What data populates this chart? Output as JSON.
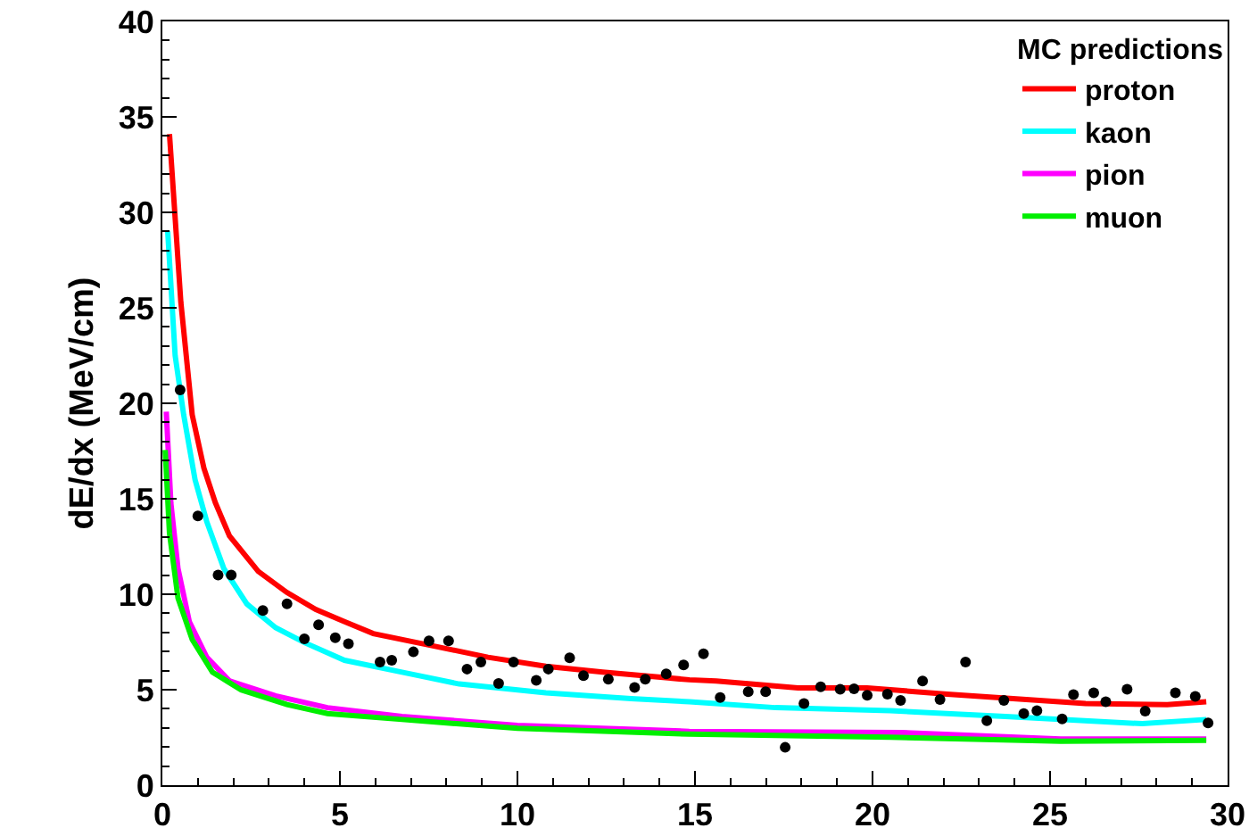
{
  "chart_data": {
    "type": "line",
    "ylabel": "dE/dx (MeV/cm)",
    "legend_title": "MC predictions",
    "legend": "top right",
    "grid": false,
    "xlim": [
      0,
      30
    ],
    "xticks": [
      0,
      5,
      10,
      15,
      20,
      25,
      30
    ],
    "ylim": [
      0,
      40
    ],
    "yticks": [
      0,
      5,
      10,
      15,
      20,
      25,
      30,
      35,
      40
    ],
    "series": [
      {
        "name": "proton",
        "color": "#ff0000",
        "x": [
          0.2,
          0.52,
          0.84,
          1.17,
          1.49,
          1.89,
          2.7,
          3.5,
          4.32,
          5.13,
          5.94,
          7.56,
          9.17,
          10.8,
          12.4,
          14.84,
          15.6,
          17.9,
          19.85,
          22.1,
          26.0,
          28.3,
          29.4
        ],
        "values": [
          34.1,
          25.3,
          19.4,
          16.6,
          14.8,
          13.05,
          11.2,
          10.1,
          9.2,
          8.56,
          7.94,
          7.32,
          6.7,
          6.23,
          5.92,
          5.52,
          5.46,
          5.09,
          5.09,
          4.77,
          4.28,
          4.22,
          4.37
        ]
      },
      {
        "name": "kaon",
        "color": "#00ffff",
        "x": [
          0.15,
          0.36,
          0.6,
          0.92,
          1.25,
          1.73,
          2.38,
          3.19,
          4.0,
          5.13,
          6.75,
          8.36,
          10.8,
          13.2,
          14.84,
          17.27,
          20.5,
          23.74,
          27.6,
          29.4
        ],
        "values": [
          29.0,
          22.5,
          19.4,
          16.0,
          13.8,
          11.35,
          9.49,
          8.25,
          7.47,
          6.54,
          5.92,
          5.3,
          4.84,
          4.53,
          4.37,
          4.06,
          3.9,
          3.6,
          3.22,
          3.44
        ]
      },
      {
        "name": "pion",
        "color": "#ff00ff",
        "x": [
          0.11,
          0.24,
          0.44,
          0.76,
          1.25,
          1.89,
          3.19,
          4.65,
          6.75,
          10.0,
          14.84,
          20.8,
          25.3,
          29.4
        ],
        "values": [
          19.56,
          14.76,
          11.35,
          8.56,
          6.7,
          5.46,
          4.68,
          4.06,
          3.6,
          3.13,
          2.82,
          2.76,
          2.42,
          2.42
        ]
      },
      {
        "name": "muon",
        "color": "#00ee00",
        "x": [
          0.08,
          0.2,
          0.44,
          0.84,
          1.41,
          2.22,
          3.51,
          4.65,
          6.75,
          10.0,
          14.84,
          20.5,
          25.3,
          29.4
        ],
        "values": [
          17.55,
          13.2,
          9.8,
          7.63,
          5.92,
          4.99,
          4.22,
          3.75,
          3.44,
          2.98,
          2.67,
          2.51,
          2.3,
          2.35
        ]
      },
      {
        "type": "scatter",
        "marker": "circle",
        "color": "#000000",
        "x": [
          0.5,
          1.0,
          1.57,
          1.94,
          2.83,
          3.51,
          4.0,
          4.4,
          4.87,
          5.24,
          6.13,
          6.46,
          7.07,
          7.51,
          8.06,
          8.58,
          8.97,
          9.47,
          9.89,
          10.53,
          10.87,
          11.47,
          11.86,
          12.56,
          13.3,
          13.6,
          14.19,
          14.68,
          15.24,
          15.71,
          16.5,
          16.99,
          17.54,
          18.07,
          18.54,
          19.09,
          19.48,
          19.85,
          20.42,
          20.79,
          21.41,
          21.9,
          22.62,
          23.22,
          23.7,
          24.26,
          24.63,
          25.34,
          25.66,
          26.23,
          26.57,
          27.17,
          27.68,
          28.53,
          29.09,
          29.45
        ],
        "values": [
          20.7,
          14.1,
          11.0,
          11.0,
          9.15,
          9.5,
          7.66,
          8.4,
          7.72,
          7.41,
          6.45,
          6.54,
          6.98,
          7.56,
          7.56,
          6.08,
          6.45,
          5.33,
          6.45,
          5.49,
          6.08,
          6.67,
          5.74,
          5.55,
          5.12,
          5.55,
          5.83,
          6.3,
          6.88,
          4.59,
          4.9,
          4.9,
          1.98,
          4.28,
          5.15,
          5.02,
          5.05,
          4.71,
          4.77,
          4.44,
          5.46,
          4.49,
          6.45,
          3.38,
          4.44,
          3.75,
          3.9,
          3.47,
          4.74,
          4.84,
          4.37,
          5.02,
          3.88,
          4.84,
          4.65,
          3.26
        ]
      }
    ]
  }
}
